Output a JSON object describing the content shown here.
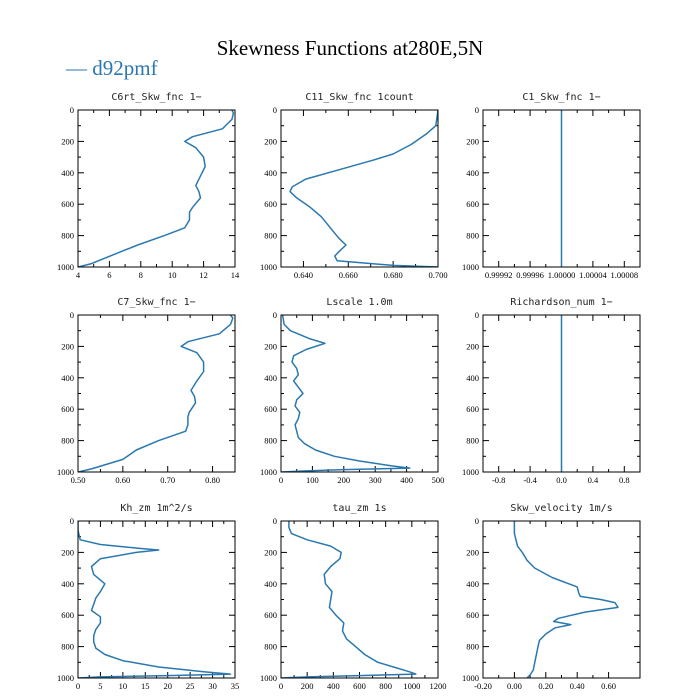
{
  "figure": {
    "title": "Skewness Functions at280E,5N",
    "legend_label": "— d92pmf",
    "line_color": "#2a78b0"
  },
  "chart_data": [
    {
      "type": "line",
      "title": "C6rt_Skw_fnc   1−",
      "xlim": [
        4,
        14
      ],
      "ylim": [
        1000,
        0
      ],
      "xticks": [
        4,
        6,
        8,
        10,
        12,
        14
      ],
      "xtick_labels": [
        "4",
        "6",
        "8",
        "10",
        "12",
        "14"
      ],
      "yticks": [
        0,
        200,
        400,
        600,
        800,
        1000
      ],
      "ytick_labels": [
        "0",
        "200",
        "400",
        "600",
        "800",
        "1000"
      ],
      "series": [
        {
          "name": "d92pmf",
          "y": [
            0,
            20,
            60,
            120,
            170,
            200,
            240,
            300,
            360,
            420,
            480,
            520,
            560,
            620,
            650,
            700,
            750,
            800,
            860,
            920,
            980,
            1000
          ],
          "x": [
            13.8,
            13.9,
            13.8,
            13.2,
            11.3,
            10.8,
            11.5,
            12.0,
            12.1,
            11.8,
            11.5,
            11.7,
            11.8,
            11.3,
            11.1,
            11.1,
            10.8,
            9.5,
            7.8,
            6.3,
            4.8,
            4.0
          ]
        }
      ]
    },
    {
      "type": "line",
      "title": "C11_Skw_fnc   1count",
      "xlim": [
        0.63,
        0.7
      ],
      "ylim": [
        1000,
        0
      ],
      "xticks": [
        0.64,
        0.66,
        0.68,
        0.7
      ],
      "xtick_labels": [
        "0.640",
        "0.660",
        "0.680",
        "0.700"
      ],
      "yticks": [
        0,
        200,
        400,
        600,
        800,
        1000
      ],
      "ytick_labels": [
        "0",
        "200",
        "400",
        "600",
        "800",
        "1000"
      ],
      "series": [
        {
          "name": "d92pmf",
          "y": [
            0,
            100,
            150,
            220,
            280,
            320,
            380,
            440,
            490,
            520,
            560,
            620,
            680,
            750,
            820,
            860,
            900,
            930,
            960,
            990,
            1000
          ],
          "x": [
            0.7,
            0.699,
            0.695,
            0.688,
            0.68,
            0.671,
            0.656,
            0.641,
            0.635,
            0.634,
            0.637,
            0.643,
            0.648,
            0.652,
            0.656,
            0.659,
            0.656,
            0.654,
            0.655,
            0.68,
            0.7
          ]
        }
      ]
    },
    {
      "type": "line",
      "title": "C1_Skw_fnc   1−",
      "xlim": [
        0.9999,
        1.0001
      ],
      "ylim": [
        1000,
        0
      ],
      "xticks": [
        0.99992,
        0.99996,
        1.0,
        1.00004,
        1.00008
      ],
      "xtick_labels": [
        "0.99992",
        "0.99996",
        "1.00000",
        "1.00004",
        "1.00008"
      ],
      "yticks": [
        0,
        200,
        400,
        600,
        800,
        1000
      ],
      "ytick_labels": [
        "0",
        "200",
        "400",
        "600",
        "800",
        "1000"
      ],
      "series": [
        {
          "name": "d92pmf",
          "y": [
            0,
            1000
          ],
          "x": [
            1.0,
            1.0
          ]
        }
      ]
    },
    {
      "type": "line",
      "title": "C7_Skw_fnc   1−",
      "xlim": [
        0.5,
        0.85
      ],
      "ylim": [
        1000,
        0
      ],
      "xticks": [
        0.5,
        0.6,
        0.7,
        0.8
      ],
      "xtick_labels": [
        "0.50",
        "0.60",
        "0.70",
        "0.80"
      ],
      "yticks": [
        0,
        200,
        400,
        600,
        800,
        1000
      ],
      "ytick_labels": [
        "0",
        "200",
        "400",
        "600",
        "800",
        "1000"
      ],
      "series": [
        {
          "name": "d92pmf",
          "y": [
            0,
            20,
            60,
            120,
            170,
            200,
            240,
            300,
            360,
            420,
            480,
            520,
            560,
            620,
            650,
            700,
            740,
            800,
            860,
            920,
            980,
            1000
          ],
          "x": [
            0.84,
            0.845,
            0.84,
            0.815,
            0.745,
            0.73,
            0.765,
            0.78,
            0.78,
            0.765,
            0.752,
            0.76,
            0.762,
            0.748,
            0.745,
            0.745,
            0.74,
            0.68,
            0.63,
            0.6,
            0.53,
            0.5
          ]
        }
      ]
    },
    {
      "type": "line",
      "title": "Lscale   1.0m",
      "xlim": [
        0,
        500
      ],
      "ylim": [
        1000,
        0
      ],
      "xticks": [
        0,
        100,
        200,
        300,
        400,
        500
      ],
      "xtick_labels": [
        "0",
        "100",
        "200",
        "300",
        "400",
        "500"
      ],
      "yticks": [
        0,
        200,
        400,
        600,
        800,
        1000
      ],
      "ytick_labels": [
        "0",
        "200",
        "400",
        "600",
        "800",
        "1000"
      ],
      "series": [
        {
          "name": "d92pmf",
          "y": [
            0,
            60,
            100,
            150,
            180,
            220,
            260,
            300,
            340,
            380,
            420,
            460,
            500,
            540,
            580,
            620,
            660,
            700,
            740,
            780,
            820,
            860,
            900,
            930,
            960,
            975,
            985,
            993,
            1000
          ],
          "x": [
            5,
            10,
            30,
            90,
            140,
            80,
            40,
            35,
            50,
            55,
            40,
            55,
            70,
            50,
            45,
            60,
            55,
            45,
            50,
            55,
            75,
            110,
            170,
            250,
            350,
            410,
            200,
            80,
            0
          ]
        }
      ]
    },
    {
      "type": "line",
      "title": "Richardson_num   1−",
      "xlim": [
        -1.0,
        1.0
      ],
      "ylim": [
        1000,
        0
      ],
      "xticks": [
        -0.8,
        -0.4,
        0.0,
        0.4,
        0.8
      ],
      "xtick_labels": [
        "-0.8",
        "-0.4",
        "0.0",
        "0.4",
        "0.8"
      ],
      "yticks": [
        0,
        200,
        400,
        600,
        800,
        1000
      ],
      "ytick_labels": [
        "0",
        "200",
        "400",
        "600",
        "800",
        "1000"
      ],
      "series": [
        {
          "name": "d92pmf",
          "y": [
            0,
            1000
          ],
          "x": [
            0.0,
            0.0
          ]
        }
      ]
    },
    {
      "type": "line",
      "title": "Kh_zm   1m^2/s",
      "xlim": [
        0,
        35
      ],
      "ylim": [
        1000,
        0
      ],
      "xticks": [
        0,
        5,
        10,
        15,
        20,
        25,
        30,
        35
      ],
      "xtick_labels": [
        "0",
        "5",
        "10",
        "15",
        "20",
        "25",
        "30",
        "35"
      ],
      "yticks": [
        0,
        200,
        400,
        600,
        800,
        1000
      ],
      "ytick_labels": [
        "0",
        "200",
        "400",
        "600",
        "800",
        "1000"
      ],
      "series": [
        {
          "name": "d92pmf",
          "y": [
            0,
            60,
            120,
            150,
            175,
            185,
            200,
            240,
            290,
            340,
            400,
            450,
            490,
            530,
            570,
            610,
            650,
            690,
            730,
            770,
            810,
            850,
            890,
            930,
            960,
            975,
            985,
            993,
            1000
          ],
          "x": [
            0,
            0,
            0.5,
            5,
            14,
            18,
            13,
            5,
            3,
            3.5,
            6,
            5,
            4,
            3.5,
            3,
            5,
            5,
            4,
            3.5,
            3.5,
            4,
            6,
            10,
            18,
            28,
            34,
            20,
            5,
            0
          ]
        }
      ]
    },
    {
      "type": "line",
      "title": "tau_zm   1s",
      "xlim": [
        0,
        1200
      ],
      "ylim": [
        1000,
        0
      ],
      "xticks": [
        0,
        200,
        400,
        600,
        800,
        1000,
        1200
      ],
      "xtick_labels": [
        "0",
        "200",
        "400",
        "600",
        "800",
        "1000",
        "1200"
      ],
      "yticks": [
        0,
        200,
        400,
        600,
        800,
        1000
      ],
      "ytick_labels": [
        "0",
        "200",
        "400",
        "600",
        "800",
        "1000"
      ],
      "series": [
        {
          "name": "d92pmf",
          "y": [
            0,
            40,
            80,
            120,
            160,
            200,
            240,
            290,
            340,
            400,
            450,
            500,
            550,
            600,
            650,
            700,
            750,
            800,
            850,
            900,
            930,
            960,
            975,
            985,
            993,
            1000
          ],
          "x": [
            60,
            60,
            80,
            200,
            380,
            460,
            450,
            380,
            330,
            340,
            390,
            380,
            370,
            420,
            480,
            470,
            500,
            570,
            640,
            740,
            860,
            980,
            1030,
            600,
            200,
            0
          ]
        }
      ]
    },
    {
      "type": "line",
      "title": "Skw_velocity   1m/s",
      "xlim": [
        -0.2,
        0.8
      ],
      "ylim": [
        1000,
        0
      ],
      "xticks": [
        -0.2,
        0.0,
        0.2,
        0.4,
        0.6
      ],
      "xtick_labels": [
        "-0.20",
        "0.00",
        "0.20",
        "0.40",
        "0.60"
      ],
      "yticks": [
        0,
        200,
        400,
        600,
        800,
        1000
      ],
      "ytick_labels": [
        "0",
        "200",
        "400",
        "600",
        "800",
        "1000"
      ],
      "series": [
        {
          "name": "d92pmf",
          "y": [
            0,
            80,
            160,
            200,
            250,
            300,
            360,
            420,
            460,
            480,
            500,
            520,
            550,
            580,
            620,
            640,
            660,
            680,
            720,
            760,
            800,
            850,
            900,
            950,
            980,
            1000
          ],
          "x": [
            0.0,
            0.0,
            0.02,
            0.05,
            0.08,
            0.13,
            0.24,
            0.4,
            0.41,
            0.42,
            0.55,
            0.64,
            0.66,
            0.45,
            0.28,
            0.25,
            0.36,
            0.26,
            0.2,
            0.16,
            0.15,
            0.14,
            0.13,
            0.12,
            0.1,
            0.08
          ]
        }
      ]
    }
  ]
}
